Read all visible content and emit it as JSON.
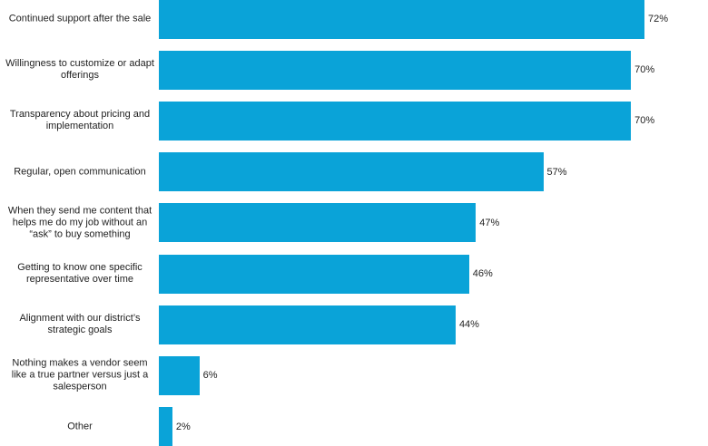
{
  "chart_data": {
    "type": "bar",
    "orientation": "horizontal",
    "categories": [
      "Continued support after the sale",
      "Willingness to customize or adapt offerings",
      "Transparency about pricing and implementation",
      "Regular, open communication",
      "When they send me content that helps me do my job without an “ask” to buy something",
      "Getting to know one specific representative over time",
      "Alignment with our district’s strategic goals",
      "Nothing makes a vendor seem like a true partner versus just a salesperson",
      "Other"
    ],
    "values": [
      72,
      70,
      70,
      57,
      47,
      46,
      44,
      6,
      2
    ],
    "value_labels": [
      "72%",
      "70%",
      "70%",
      "57%",
      "47%",
      "46%",
      "44%",
      "6%",
      "2%"
    ],
    "color": "#0aa3d8"
  }
}
